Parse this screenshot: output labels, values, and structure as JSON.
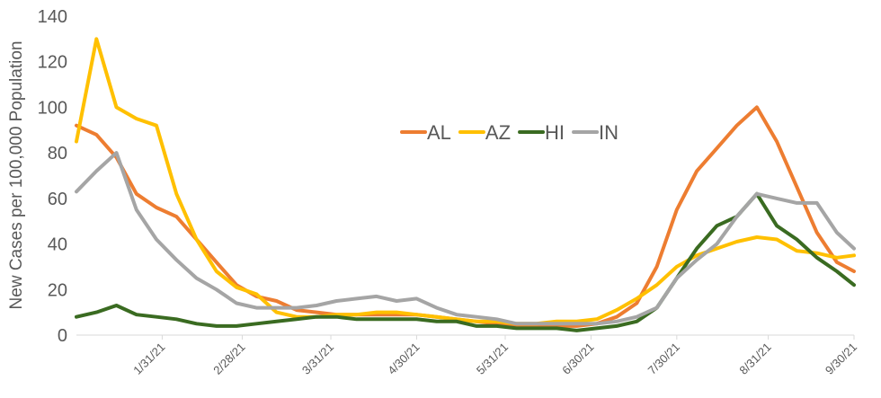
{
  "chart_data": {
    "type": "line",
    "y_label": "New Cases per 100,000 Population",
    "ylim": [
      0,
      140
    ],
    "yticks": [
      0,
      20,
      40,
      60,
      80,
      100,
      120,
      140
    ],
    "xlim": [
      "1/1/21",
      "9/30/21"
    ],
    "xticks": [
      "1/31/21",
      "2/28/21",
      "3/31/21",
      "4/30/21",
      "5/31/21",
      "6/30/21",
      "7/30/21",
      "8/31/21",
      "9/30/21"
    ],
    "x": [
      "1/1/21",
      "1/8/21",
      "1/15/21",
      "1/22/21",
      "1/29/21",
      "2/5/21",
      "2/12/21",
      "2/19/21",
      "2/26/21",
      "3/5/21",
      "3/12/21",
      "3/19/21",
      "3/26/21",
      "4/2/21",
      "4/9/21",
      "4/16/21",
      "4/23/21",
      "4/30/21",
      "5/7/21",
      "5/14/21",
      "5/21/21",
      "5/28/21",
      "6/4/21",
      "6/11/21",
      "6/18/21",
      "6/25/21",
      "7/2/21",
      "7/9/21",
      "7/16/21",
      "7/23/21",
      "7/30/21",
      "8/6/21",
      "8/13/21",
      "8/20/21",
      "8/27/21",
      "9/3/21",
      "9/10/21",
      "9/17/21",
      "9/24/21",
      "9/30/21"
    ],
    "series": [
      {
        "name": "AL",
        "color": "#ed7d31",
        "values": [
          92,
          88,
          78,
          62,
          56,
          52,
          42,
          32,
          22,
          17,
          15,
          11,
          10,
          9,
          9,
          9,
          9,
          9,
          8,
          7,
          6,
          5,
          4,
          4,
          4,
          4,
          5,
          8,
          14,
          30,
          55,
          72,
          82,
          92,
          100,
          85,
          65,
          45,
          32,
          28
        ]
      },
      {
        "name": "AZ",
        "color": "#ffc000",
        "values": [
          85,
          130,
          100,
          95,
          92,
          62,
          42,
          28,
          21,
          18,
          10,
          8,
          8,
          9,
          9,
          10,
          10,
          9,
          8,
          7,
          6,
          6,
          5,
          5,
          6,
          6,
          7,
          11,
          16,
          22,
          30,
          35,
          38,
          41,
          43,
          42,
          37,
          36,
          34,
          35
        ]
      },
      {
        "name": "HI",
        "color": "#3a6b21",
        "values": [
          8,
          10,
          13,
          9,
          8,
          7,
          5,
          4,
          4,
          5,
          6,
          7,
          8,
          8,
          7,
          7,
          7,
          7,
          6,
          6,
          4,
          4,
          3,
          3,
          3,
          2,
          3,
          4,
          6,
          12,
          25,
          38,
          48,
          52,
          62,
          48,
          42,
          34,
          28,
          22
        ]
      },
      {
        "name": "IN",
        "color": "#a5a5a5",
        "values": [
          63,
          72,
          80,
          55,
          42,
          33,
          25,
          20,
          14,
          12,
          12,
          12,
          13,
          15,
          16,
          17,
          15,
          16,
          12,
          9,
          8,
          7,
          5,
          5,
          5,
          5,
          5,
          6,
          8,
          12,
          25,
          33,
          40,
          52,
          62,
          60,
          58,
          58,
          45,
          38
        ]
      }
    ]
  }
}
